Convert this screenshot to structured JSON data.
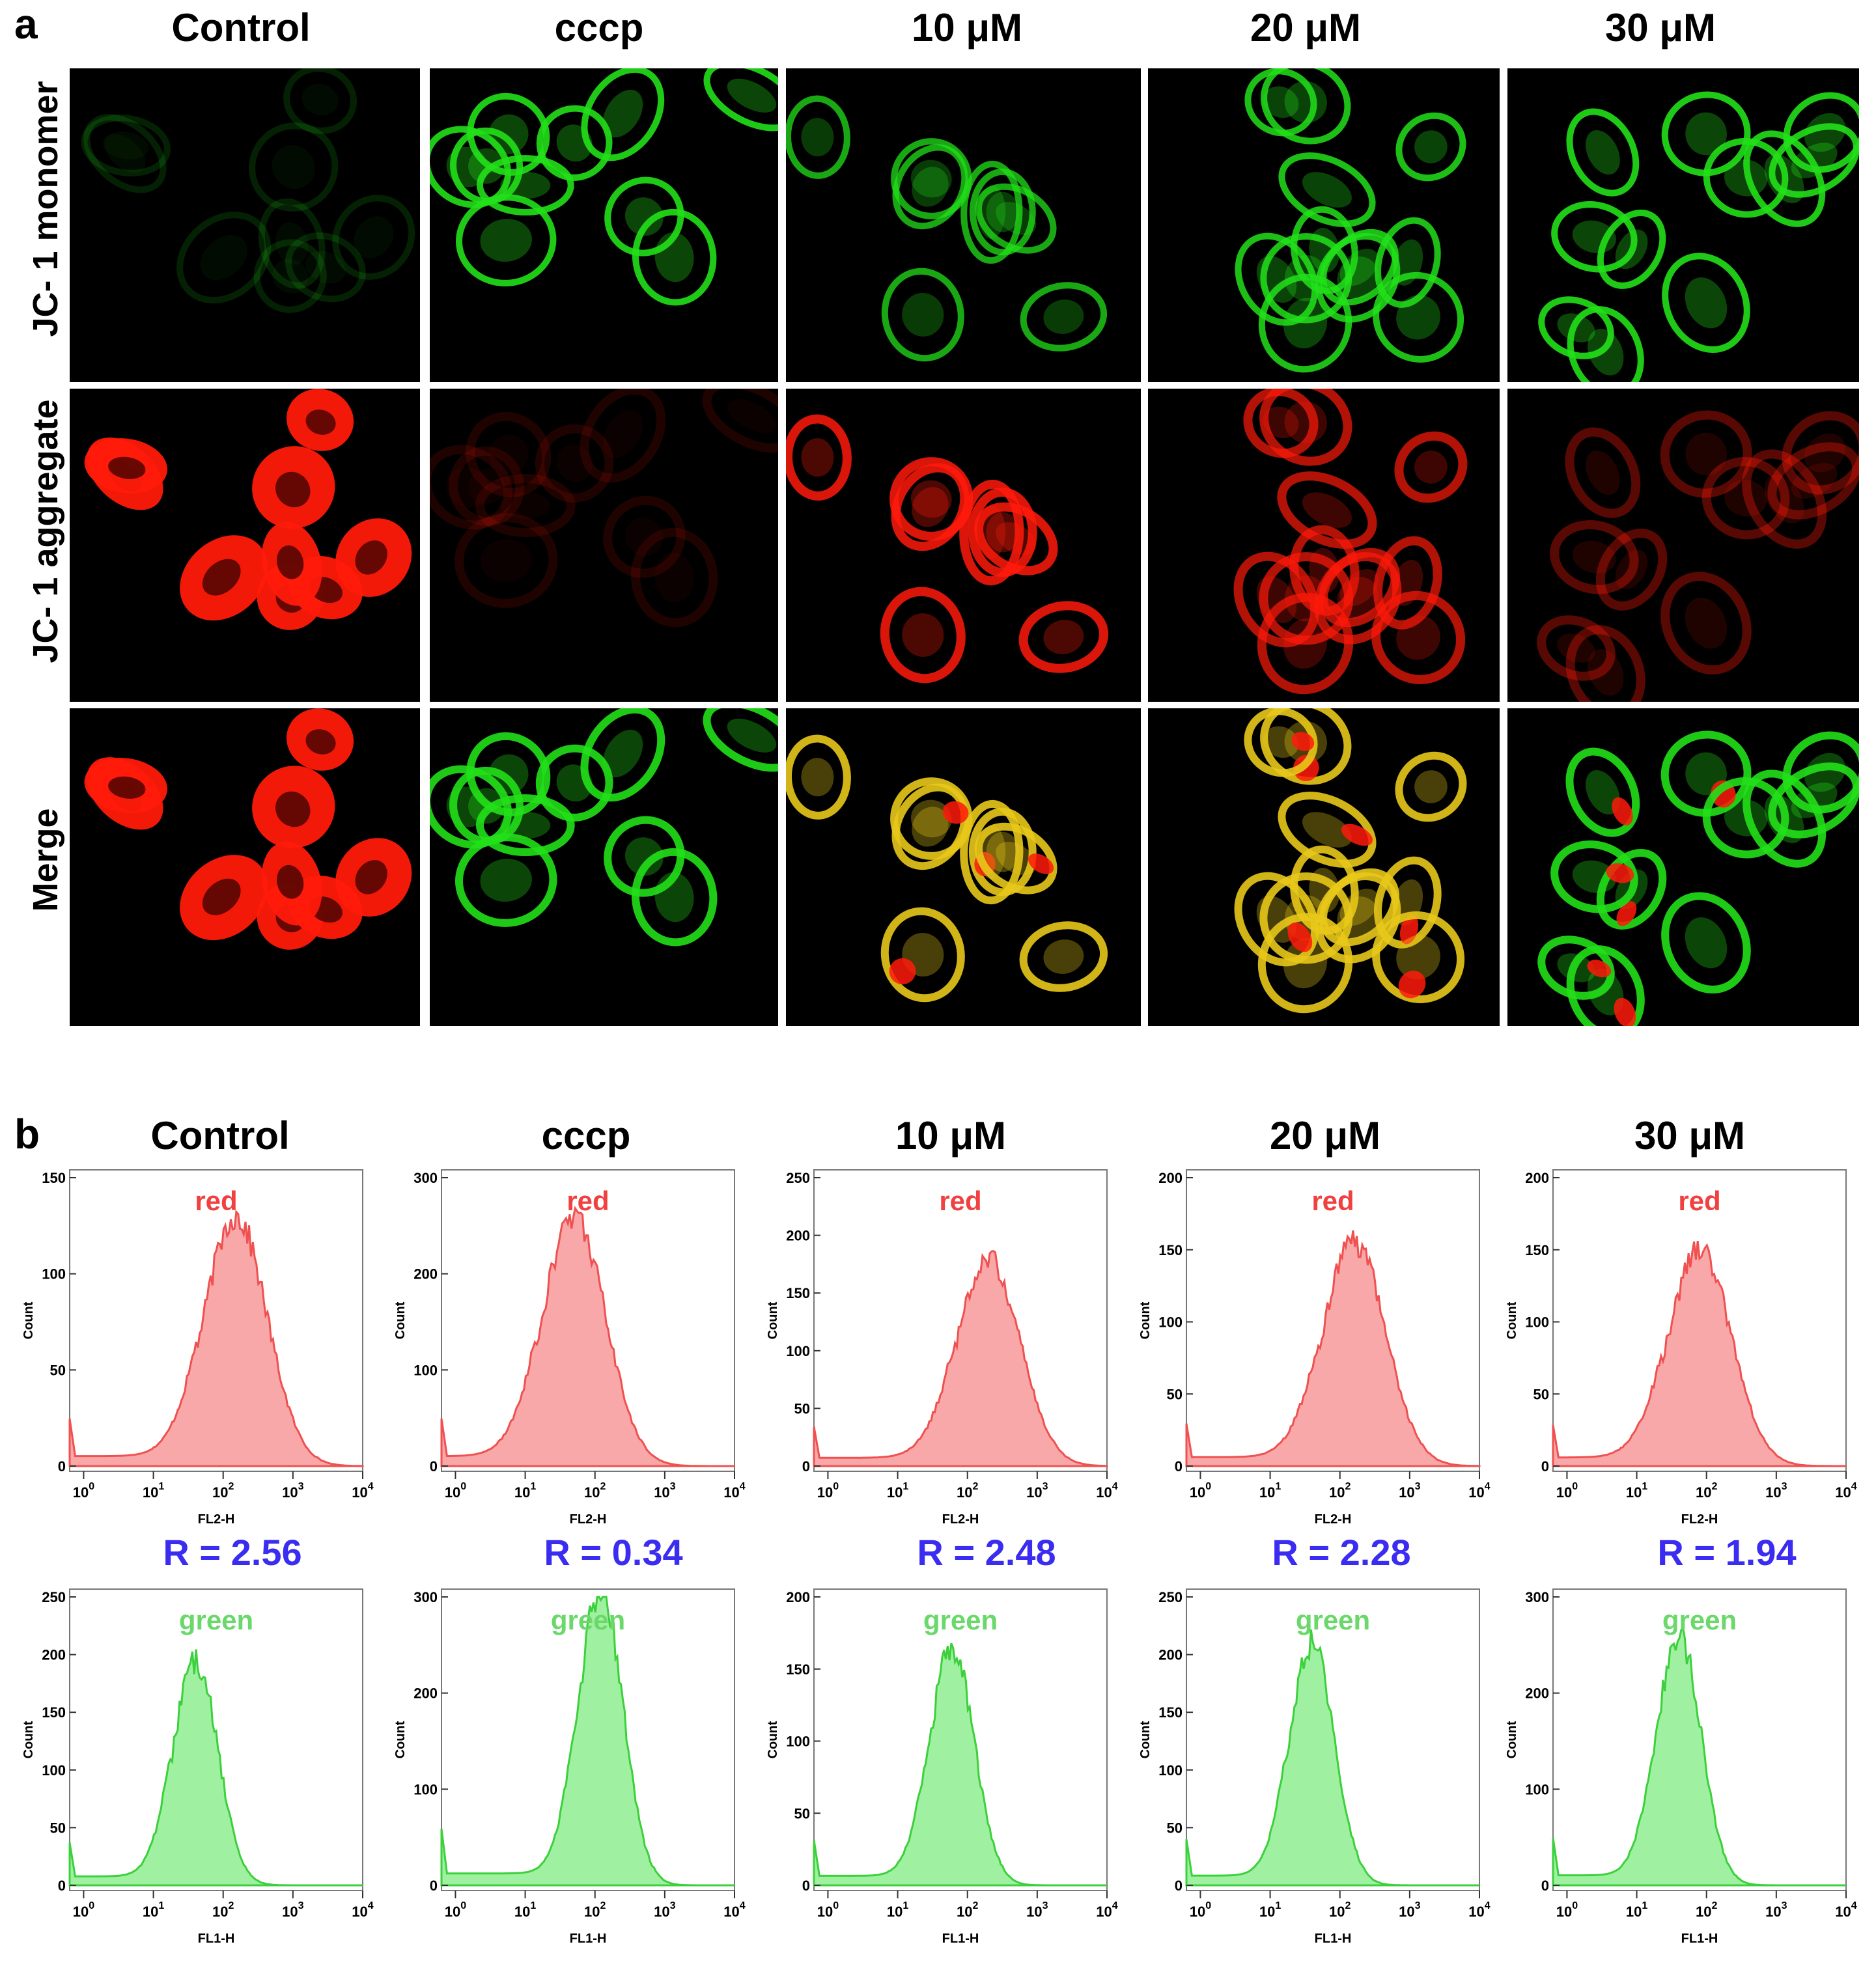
{
  "panel_a": {
    "letter": "a",
    "columns": [
      "Control",
      "cccp",
      "10 μM",
      "20 μM",
      "30 μM"
    ],
    "rows": [
      "JC- 1 monomer",
      "JC- 1 aggregate",
      "Merge"
    ],
    "channel_colors": {
      "monomer": "#22e01a",
      "aggregate": "#ff1a0a",
      "merge_overlap": "#e8c81a"
    }
  },
  "panel_b": {
    "letter": "b",
    "columns": [
      "Control",
      "cccp",
      "10 μM",
      "20 μM",
      "30 μM"
    ],
    "red_label": "red",
    "green_label": "green",
    "red_xlabel": "FL2-H",
    "green_xlabel": "FL1-H",
    "ylabel": "Count",
    "ratios": [
      "R = 2.56",
      "R = 0.34",
      "R = 2.48",
      "R = 2.28",
      "R = 1.94"
    ],
    "colors": {
      "red_fill": "#f8a8a8",
      "red_line": "#f05050",
      "green_fill": "#9ff0a0",
      "green_line": "#3cd03c",
      "red_text": "#f04040",
      "green_text": "#6bd86b",
      "ratio_text": "#3a2cf0"
    }
  },
  "chart_data": [
    {
      "type": "area",
      "channel": "red",
      "condition": "Control",
      "xlabel": "FL2-H",
      "ylabel": "Count",
      "xscale": "log",
      "xlim": [
        1,
        10000
      ],
      "ylim": [
        0,
        150
      ],
      "yticks": [
        0,
        50,
        100,
        150
      ],
      "peak_x": 150,
      "peak_count": 130
    },
    {
      "type": "area",
      "channel": "red",
      "condition": "cccp",
      "xlabel": "FL2-H",
      "ylabel": "Count",
      "xscale": "log",
      "xlim": [
        1,
        10000
      ],
      "ylim": [
        0,
        300
      ],
      "yticks": [
        0,
        100,
        200,
        300
      ],
      "peak_x": 50,
      "peak_count": 260
    },
    {
      "type": "area",
      "channel": "red",
      "condition": "10 μM",
      "xlabel": "FL2-H",
      "ylabel": "Count",
      "xscale": "log",
      "xlim": [
        1,
        10000
      ],
      "ylim": [
        0,
        250
      ],
      "yticks": [
        0,
        50,
        100,
        150,
        200,
        250
      ],
      "peak_x": 200,
      "peak_count": 180
    },
    {
      "type": "area",
      "channel": "red",
      "condition": "20 μM",
      "xlabel": "FL2-H",
      "ylabel": "Count",
      "xscale": "log",
      "xlim": [
        1,
        10000
      ],
      "ylim": [
        0,
        200
      ],
      "yticks": [
        0,
        50,
        100,
        150,
        200
      ],
      "peak_x": 160,
      "peak_count": 155
    },
    {
      "type": "area",
      "channel": "red",
      "condition": "30 μM",
      "xlabel": "FL2-H",
      "ylabel": "Count",
      "xscale": "log",
      "xlim": [
        1,
        10000
      ],
      "ylim": [
        0,
        200
      ],
      "yticks": [
        0,
        50,
        100,
        150,
        200
      ],
      "peak_x": 80,
      "peak_count": 150
    },
    {
      "type": "area",
      "channel": "green",
      "condition": "Control",
      "xlabel": "FL1-H",
      "ylabel": "Count",
      "xscale": "log",
      "xlim": [
        1,
        10000
      ],
      "ylim": [
        0,
        250
      ],
      "yticks": [
        0,
        50,
        100,
        150,
        200,
        250
      ],
      "peak_x": 40,
      "peak_count": 195
    },
    {
      "type": "area",
      "channel": "green",
      "condition": "cccp",
      "xlabel": "FL1-H",
      "ylabel": "Count",
      "xscale": "log",
      "xlim": [
        1,
        10000
      ],
      "ylim": [
        0,
        300
      ],
      "yticks": [
        0,
        100,
        200,
        300
      ],
      "peak_x": 120,
      "peak_count": 310
    },
    {
      "type": "area",
      "channel": "green",
      "condition": "10 μM",
      "xlabel": "FL1-H",
      "ylabel": "Count",
      "xscale": "log",
      "xlim": [
        1,
        10000
      ],
      "ylim": [
        0,
        200
      ],
      "yticks": [
        0,
        50,
        100,
        150,
        200
      ],
      "peak_x": 60,
      "peak_count": 165
    },
    {
      "type": "area",
      "channel": "green",
      "condition": "20 μM",
      "xlabel": "FL1-H",
      "ylabel": "Count",
      "xscale": "log",
      "xlim": [
        1,
        10000
      ],
      "ylim": [
        0,
        250
      ],
      "yticks": [
        0,
        50,
        100,
        150,
        200,
        250
      ],
      "peak_x": 40,
      "peak_count": 210
    },
    {
      "type": "area",
      "channel": "green",
      "condition": "30 μM",
      "xlabel": "FL1-H",
      "ylabel": "Count",
      "xscale": "log",
      "xlim": [
        1,
        10000
      ],
      "ylim": [
        0,
        300
      ],
      "yticks": [
        0,
        100,
        200,
        300
      ],
      "peak_x": 40,
      "peak_count": 260
    }
  ]
}
